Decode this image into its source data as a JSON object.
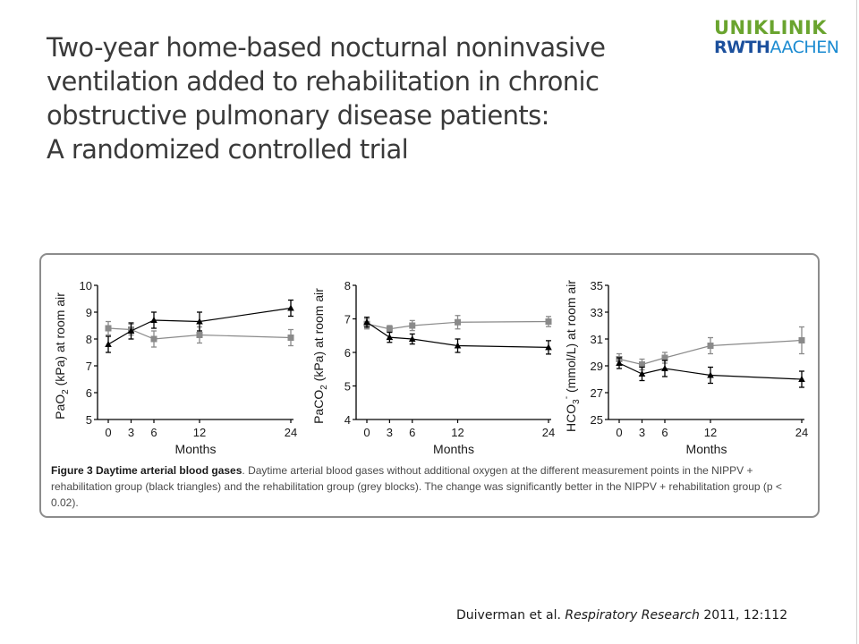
{
  "slide": {
    "title_lines": [
      "Two-year home-based nocturnal noninvasive",
      "ventilation added to rehabilitation in chronic",
      "obstructive pulmonary disease patients:",
      "A randomized controlled trial"
    ]
  },
  "logo": {
    "line1": "UNIKLINIK",
    "line2a": "RWTH",
    "line2b": "AACHEN"
  },
  "caption": {
    "figure_title": "Figure 3 Daytime arterial blood gases",
    "text": ". Daytime arterial blood gases without additional oxygen at the different measurement points in the NIPPV + rehabilitation group (black triangles) and the rehabilitation group (grey blocks). The change was significantly better in the NIPPV + rehabilitation group (p < 0.02)."
  },
  "citation": {
    "authors": "Duiverman et al. ",
    "journal": "Respiratory Research",
    "details": " 2011, 12:112"
  },
  "colors": {
    "nippv": "#000000",
    "rehab": "#8a8a8a",
    "frame": "#8c8c8c",
    "logo_green": "#6aa42f",
    "logo_blue": "#1b4f9c"
  },
  "chart_data": [
    {
      "type": "line",
      "ylabel": "PaO2 (kPa) at room air",
      "xlabel": "Months",
      "x": [
        0,
        3,
        6,
        12,
        24
      ],
      "ylim": [
        5,
        10
      ],
      "yticks": [
        5,
        6,
        7,
        8,
        9,
        10
      ],
      "series": [
        {
          "marker": "triangle",
          "values": [
            7.8,
            8.3,
            8.7,
            8.65,
            9.15
          ],
          "err": [
            0.3,
            0.3,
            0.3,
            0.35,
            0.3
          ]
        },
        {
          "marker": "square",
          "values": [
            8.4,
            8.35,
            8.0,
            8.15,
            8.05
          ],
          "err": [
            0.25,
            0.2,
            0.3,
            0.3,
            0.3
          ]
        }
      ]
    },
    {
      "type": "line",
      "ylabel": "PaCO2 (kPa) at room air",
      "xlabel": "Months",
      "x": [
        0,
        3,
        6,
        12,
        24
      ],
      "ylim": [
        4,
        8
      ],
      "yticks": [
        4,
        5,
        6,
        7,
        8
      ],
      "series": [
        {
          "marker": "triangle",
          "values": [
            6.9,
            6.45,
            6.4,
            6.2,
            6.15
          ],
          "err": [
            0.15,
            0.15,
            0.15,
            0.2,
            0.2
          ]
        },
        {
          "marker": "square",
          "values": [
            6.85,
            6.7,
            6.8,
            6.9,
            6.92
          ],
          "err": [
            0.15,
            0.1,
            0.15,
            0.2,
            0.15
          ]
        }
      ]
    },
    {
      "type": "line",
      "ylabel": "HCO3- (mmol/L) at room air",
      "xlabel": "Months",
      "x": [
        0,
        3,
        6,
        12,
        24
      ],
      "ylim": [
        25,
        35
      ],
      "yticks": [
        25,
        27,
        29,
        31,
        33,
        35
      ],
      "series": [
        {
          "marker": "triangle",
          "values": [
            29.2,
            28.4,
            28.8,
            28.3,
            28.0
          ],
          "err": [
            0.4,
            0.5,
            0.6,
            0.6,
            0.6
          ]
        },
        {
          "marker": "square",
          "values": [
            29.5,
            29.1,
            29.6,
            30.5,
            30.9
          ],
          "err": [
            0.4,
            0.4,
            0.4,
            0.6,
            1.0
          ]
        }
      ]
    }
  ]
}
